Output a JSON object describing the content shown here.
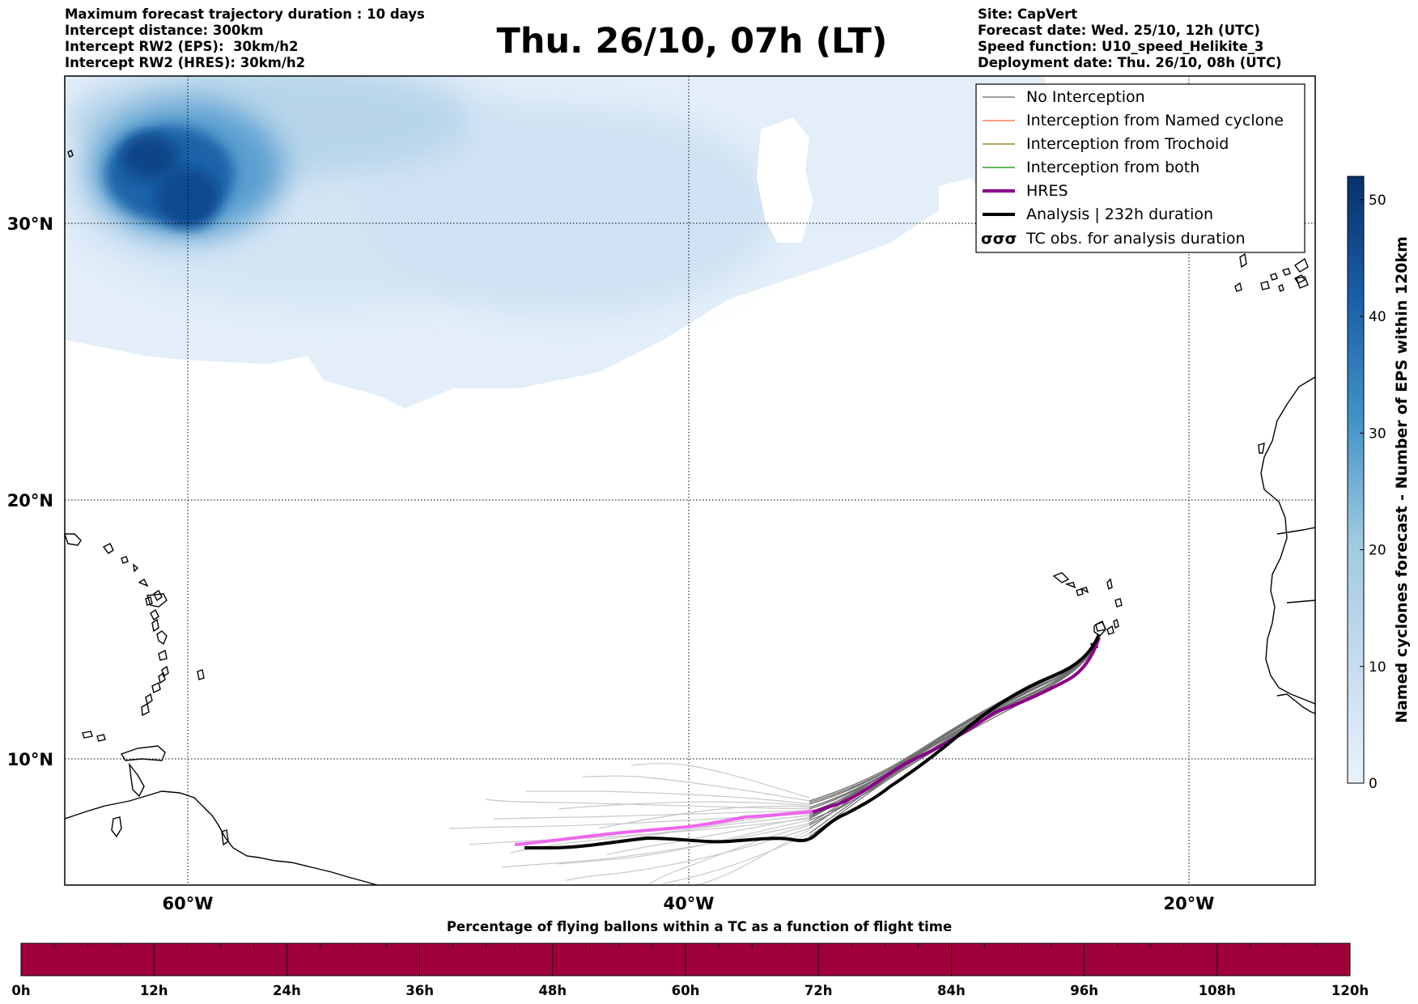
{
  "header": {
    "title": "Thu. 26/10, 07h (LT)",
    "left_lines": [
      "Maximum forecast trajectory duration : 10 days",
      "Intercept distance: 300km",
      "Intercept RW2 (EPS):  30km/h2",
      "Intercept RW2 (HRES): 30km/h2"
    ],
    "right_lines": [
      "Site: CapVert",
      "Forecast date: Wed. 25/10, 12h (UTC)",
      "Speed function: U10_speed_Helikite_3",
      "Deployment date: Thu. 26/10, 08h (UTC)"
    ]
  },
  "map": {
    "lon_ticks": [
      "60°W",
      "40°W",
      "20°W"
    ],
    "lat_ticks": [
      "30°N",
      "20°N",
      "10°N"
    ],
    "legend": [
      {
        "label": "No Interception",
        "color": "#808080",
        "width": 1.5
      },
      {
        "label": "Interception from Named cyclone",
        "color": "#ff7f50",
        "width": 1.5
      },
      {
        "label": "Interception from Trochoid",
        "color": "#a08a30",
        "width": 1.5
      },
      {
        "label": "Interception from both",
        "color": "#2ca02c",
        "width": 1.5
      },
      {
        "label": "HRES",
        "color": "#8b008b",
        "width": 4
      },
      {
        "label": "Analysis | 232h duration",
        "color": "#000000",
        "width": 4
      },
      {
        "label": "TC obs. for analysis duration",
        "symbol": "σσσ"
      }
    ]
  },
  "colorbar": {
    "label": "Named cyclones forecast - Number of EPS within 120km",
    "ticks": [
      "0",
      "10",
      "20",
      "30",
      "40",
      "50"
    ],
    "range": [
      0,
      52
    ],
    "colors": [
      "#eaf2fb",
      "#08306b"
    ]
  },
  "timebar": {
    "title": "Percentage of flying ballons within a TC as a function of flight time",
    "ticks": [
      "0h",
      "12h",
      "24h",
      "36h",
      "48h",
      "60h",
      "72h",
      "84h",
      "96h",
      "108h",
      "120h"
    ],
    "color": "#a0003c"
  }
}
